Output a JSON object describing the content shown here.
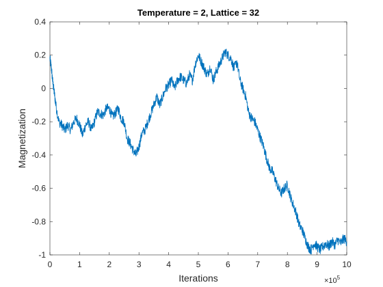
{
  "chart_data": {
    "type": "line",
    "title": "Temperature = 2, Lattice = 32",
    "xlabel": "Iterations",
    "ylabel": "Magnetization",
    "x_exponent_base": "×10",
    "x_exponent_power": "5",
    "xlim": [
      0,
      10
    ],
    "ylim": [
      -1,
      0.4
    ],
    "xticks": [
      0,
      1,
      2,
      3,
      4,
      5,
      6,
      7,
      8,
      9,
      10
    ],
    "xtick_labels": [
      "0",
      "1",
      "2",
      "3",
      "4",
      "5",
      "6",
      "7",
      "8",
      "9",
      "10"
    ],
    "yticks": [
      -1,
      -0.8,
      -0.6,
      -0.4,
      -0.2,
      0,
      0.2,
      0.4
    ],
    "ytick_labels": [
      "-1",
      "-0.8",
      "-0.6",
      "-0.4",
      "-0.2",
      "0",
      "0.2",
      "0.4"
    ],
    "grid": false,
    "box": true,
    "series": [
      {
        "color": "#0072BD",
        "x": [
          0,
          0.05,
          0.1,
          0.15,
          0.2,
          0.3,
          0.4,
          0.5,
          0.6,
          0.7,
          0.8,
          0.9,
          1.0,
          1.1,
          1.2,
          1.3,
          1.4,
          1.5,
          1.6,
          1.7,
          1.8,
          1.9,
          2.0,
          2.1,
          2.2,
          2.3,
          2.4,
          2.5,
          2.6,
          2.7,
          2.8,
          2.9,
          3.0,
          3.1,
          3.2,
          3.3,
          3.4,
          3.5,
          3.6,
          3.7,
          3.8,
          3.9,
          4.0,
          4.1,
          4.2,
          4.3,
          4.4,
          4.5,
          4.6,
          4.7,
          4.8,
          4.9,
          5.0,
          5.1,
          5.2,
          5.3,
          5.4,
          5.5,
          5.6,
          5.7,
          5.8,
          5.9,
          6.0,
          6.1,
          6.2,
          6.3,
          6.4,
          6.5,
          6.6,
          6.7,
          6.8,
          6.9,
          7.0,
          7.1,
          7.2,
          7.3,
          7.4,
          7.5,
          7.6,
          7.7,
          7.8,
          7.9,
          8.0,
          8.1,
          8.2,
          8.3,
          8.4,
          8.5,
          8.6,
          8.7,
          8.8,
          8.9,
          9.0,
          9.1,
          9.2,
          9.3,
          9.4,
          9.5,
          9.6,
          9.7,
          9.8,
          9.9,
          10.0
        ],
        "y": [
          0.18,
          0.12,
          0.03,
          -0.03,
          -0.1,
          -0.2,
          -0.22,
          -0.25,
          -0.22,
          -0.25,
          -0.2,
          -0.18,
          -0.22,
          -0.28,
          -0.22,
          -0.2,
          -0.25,
          -0.2,
          -0.14,
          -0.15,
          -0.16,
          -0.12,
          -0.12,
          -0.17,
          -0.15,
          -0.12,
          -0.18,
          -0.2,
          -0.3,
          -0.33,
          -0.37,
          -0.4,
          -0.35,
          -0.27,
          -0.25,
          -0.2,
          -0.15,
          -0.1,
          -0.05,
          -0.1,
          -0.05,
          0.0,
          0.02,
          0.05,
          0.0,
          0.05,
          0.07,
          0.05,
          0.03,
          0.08,
          0.05,
          0.15,
          0.2,
          0.16,
          0.12,
          0.08,
          0.13,
          0.05,
          0.1,
          0.14,
          0.18,
          0.22,
          0.2,
          0.18,
          0.12,
          0.16,
          0.05,
          0.0,
          -0.05,
          -0.15,
          -0.18,
          -0.2,
          -0.25,
          -0.3,
          -0.35,
          -0.42,
          -0.48,
          -0.5,
          -0.55,
          -0.6,
          -0.63,
          -0.6,
          -0.58,
          -0.65,
          -0.7,
          -0.75,
          -0.82,
          -0.85,
          -0.9,
          -0.95,
          -0.97,
          -0.93,
          -0.95,
          -0.97,
          -0.95,
          -0.93,
          -0.95,
          -0.92,
          -0.94,
          -0.91,
          -0.93,
          -0.9,
          -0.92
        ]
      }
    ]
  }
}
